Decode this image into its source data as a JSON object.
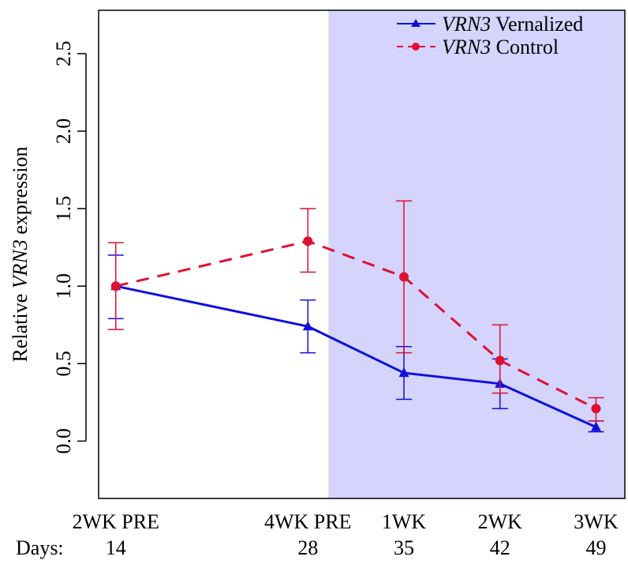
{
  "chart_data": {
    "type": "line",
    "title": "",
    "ylabel": {
      "prefix": "Relative ",
      "italic": "VRN3",
      "suffix": " expression"
    },
    "xlabel": "",
    "ylim": [
      -0.37,
      2.78
    ],
    "yticks": [
      0.0,
      0.5,
      1.0,
      1.5,
      2.0,
      2.5
    ],
    "ytick_labels": [
      "0.0",
      "0.5",
      "1.0",
      "1.5",
      "2.0",
      "2.5"
    ],
    "categories": [
      "2WK PRE",
      "4WK PRE",
      "1WK",
      "2WK",
      "3WK"
    ],
    "days_label": "Days:",
    "days": [
      "14",
      "28",
      "35",
      "42",
      "49"
    ],
    "x_positions": [
      14,
      28,
      35,
      42,
      49
    ],
    "xlim": [
      12.75,
      51.1
    ],
    "shaded_region": {
      "from": 29.5,
      "to": 51.1,
      "color": "#d4d4fc"
    },
    "grid": false,
    "legend_position": "top-right",
    "series": [
      {
        "name": {
          "italic": "VRN3",
          "suffix": " Vernalized"
        },
        "color": "#1010dd",
        "line_style": "solid",
        "marker": "triangle",
        "values": [
          1.0,
          0.74,
          0.44,
          0.37,
          0.09
        ],
        "err_low": [
          0.79,
          0.57,
          0.27,
          0.21,
          0.06
        ],
        "err_high": [
          1.2,
          0.91,
          0.61,
          0.53,
          0.13
        ]
      },
      {
        "name": {
          "italic": "VRN3",
          "suffix": " Control"
        },
        "color": "#dd1133",
        "line_style": "dashed",
        "marker": "circle",
        "values": [
          1.0,
          1.29,
          1.06,
          0.52,
          0.21
        ],
        "err_low": [
          0.72,
          1.09,
          0.57,
          0.31,
          0.13
        ],
        "err_high": [
          1.28,
          1.5,
          1.55,
          0.75,
          0.28
        ]
      }
    ]
  }
}
